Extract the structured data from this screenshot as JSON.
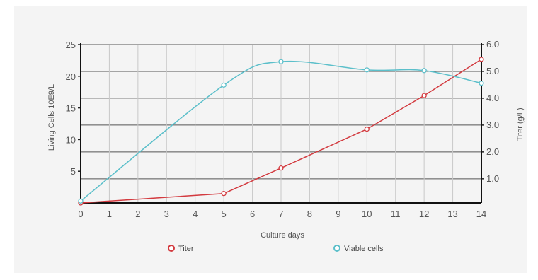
{
  "chart_data": {
    "type": "line",
    "x": [
      0,
      5,
      7,
      10,
      12,
      14
    ],
    "xlabel": "Culture days",
    "ylabel": "Living Cells 10E9/L",
    "y2label": "Titer (g/L)",
    "xlim": [
      0,
      14
    ],
    "ylim": [
      0,
      25
    ],
    "y2lim": [
      0.1,
      6.0
    ],
    "xticks": [
      "0",
      "1",
      "2",
      "3",
      "4",
      "5",
      "6",
      "7",
      "8",
      "9",
      "10",
      "11",
      "12",
      "13",
      "14"
    ],
    "yticks": [
      "5",
      "10",
      "15",
      "20",
      "25"
    ],
    "y2ticks": [
      "1.0",
      "2.0",
      "3.0",
      "4.0",
      "5.0",
      "6.0"
    ],
    "grid": true,
    "legend": "bottom",
    "series": [
      {
        "name": "Titer",
        "axis": "right",
        "color": "#d33a3f",
        "values": [
          0.1,
          0.45,
          1.4,
          2.85,
          4.1,
          5.45
        ]
      },
      {
        "name": "Viable cells",
        "axis": "left",
        "color": "#5bbfca",
        "values": [
          0.3,
          18.6,
          22.3,
          21.0,
          20.9,
          18.9
        ]
      }
    ]
  }
}
